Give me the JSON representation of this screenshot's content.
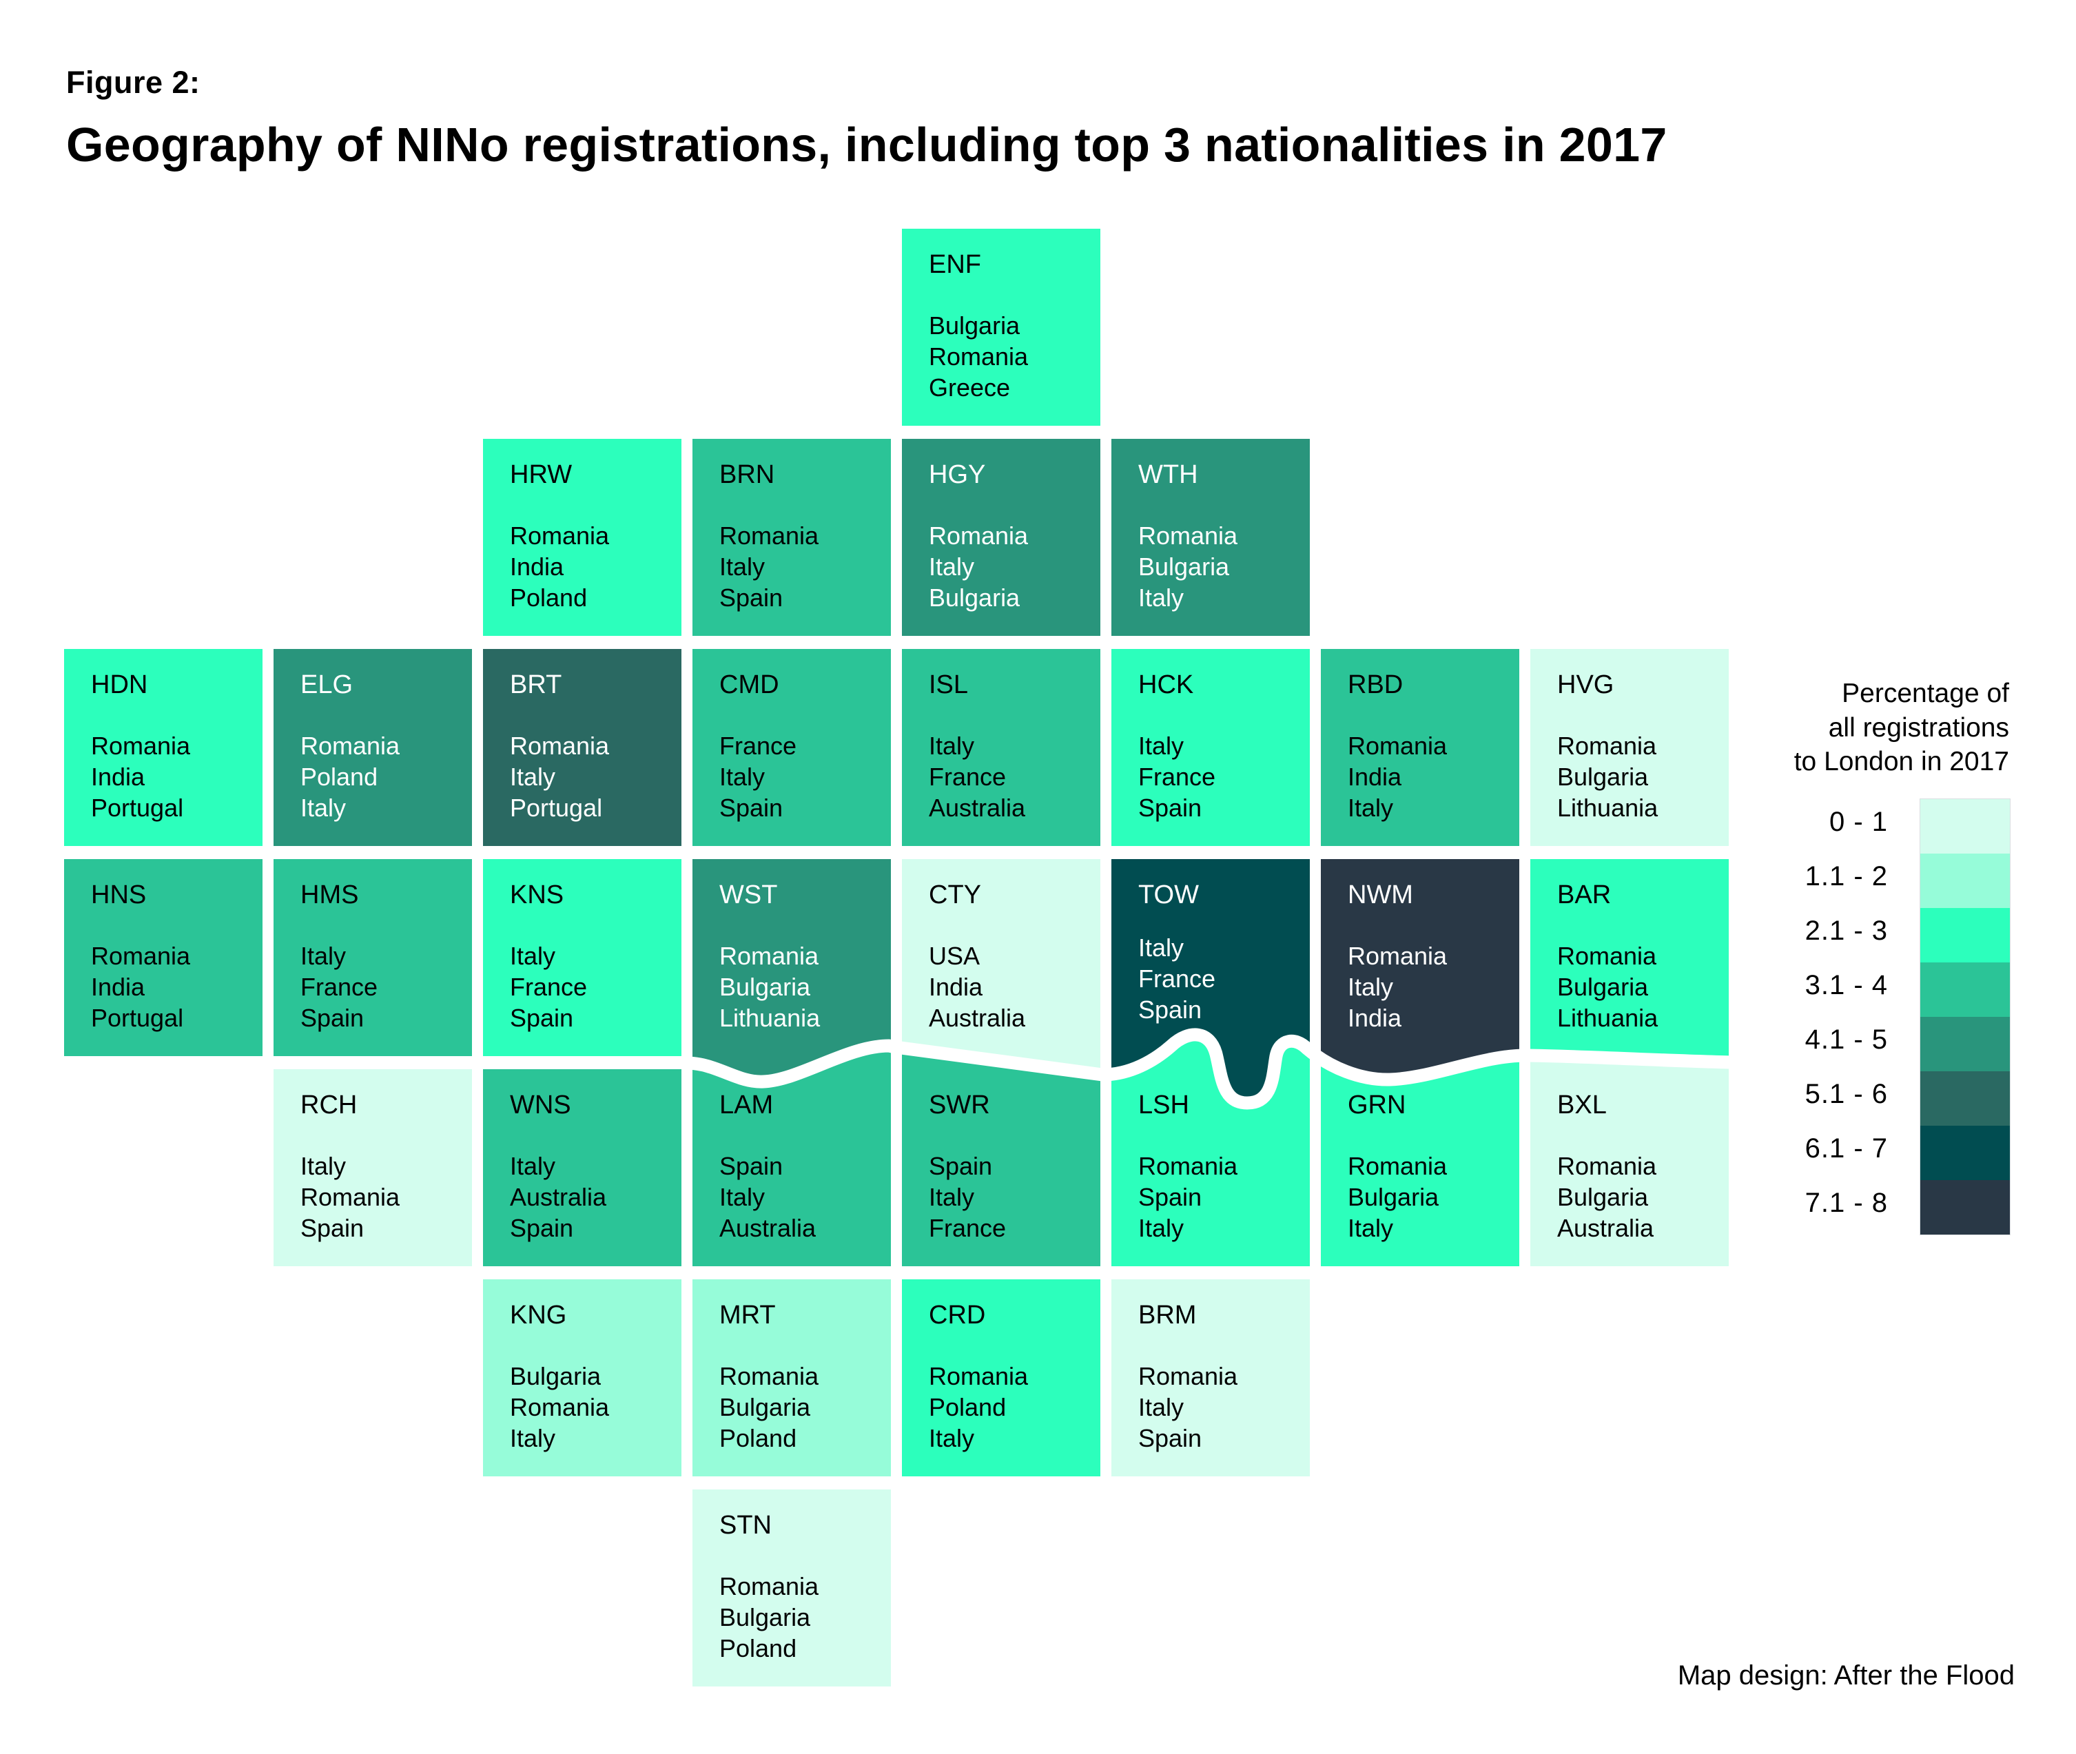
{
  "figure_label": "Figure 2:",
  "title": "Geography of NINo registrations, including top 3 nationalities in 2017",
  "legend": {
    "title_lines": [
      "Percentage of",
      "all registrations",
      "to London in 2017"
    ],
    "bands": [
      {
        "label": "0 - 1",
        "color": "#d3fdee"
      },
      {
        "label": "1.1 - 2",
        "color": "#96fcd9"
      },
      {
        "label": "2.1 - 3",
        "color": "#2cffbc"
      },
      {
        "label": "3.1 - 4",
        "color": "#2bc497"
      },
      {
        "label": "4.1 - 5",
        "color": "#29957c"
      },
      {
        "label": "5.1 - 6",
        "color": "#2a6962"
      },
      {
        "label": "6.1 - 7",
        "color": "#014d51"
      },
      {
        "label": "7.1 - 8",
        "color": "#293846"
      }
    ]
  },
  "map_data": {
    "type": "tile-map",
    "value_unit": "percentage of all registrations to London in 2017",
    "tiles": [
      {
        "code": "ENF",
        "band": "2.1 - 3",
        "countries": [
          "Bulgaria",
          "Romania",
          "Greece"
        ]
      },
      {
        "code": "HRW",
        "band": "2.1 - 3",
        "countries": [
          "Romania",
          "India",
          "Poland"
        ]
      },
      {
        "code": "BRN",
        "band": "3.1 - 4",
        "countries": [
          "Romania",
          "Italy",
          "Spain"
        ]
      },
      {
        "code": "HGY",
        "band": "4.1 - 5",
        "countries": [
          "Romania",
          "Italy",
          "Bulgaria"
        ]
      },
      {
        "code": "WTH",
        "band": "4.1 - 5",
        "countries": [
          "Romania",
          "Bulgaria",
          "Italy"
        ]
      },
      {
        "code": "HDN",
        "band": "2.1 - 3",
        "countries": [
          "Romania",
          "India",
          "Portugal"
        ]
      },
      {
        "code": "ELG",
        "band": "4.1 - 5",
        "countries": [
          "Romania",
          "Poland",
          "Italy"
        ]
      },
      {
        "code": "BRT",
        "band": "5.1 - 6",
        "countries": [
          "Romania",
          "Italy",
          "Portugal"
        ]
      },
      {
        "code": "CMD",
        "band": "3.1 - 4",
        "countries": [
          "France",
          "Italy",
          "Spain"
        ]
      },
      {
        "code": "ISL",
        "band": "3.1 - 4",
        "countries": [
          "Italy",
          "France",
          "Australia"
        ]
      },
      {
        "code": "HCK",
        "band": "2.1 - 3",
        "countries": [
          "Italy",
          "France",
          "Spain"
        ]
      },
      {
        "code": "RBD",
        "band": "3.1 - 4",
        "countries": [
          "Romania",
          "India",
          "Italy"
        ]
      },
      {
        "code": "HVG",
        "band": "0 - 1",
        "countries": [
          "Romania",
          "Bulgaria",
          "Lithuania"
        ]
      },
      {
        "code": "HNS",
        "band": "3.1 - 4",
        "countries": [
          "Romania",
          "India",
          "Portugal"
        ]
      },
      {
        "code": "HMS",
        "band": "3.1 - 4",
        "countries": [
          "Italy",
          "France",
          "Spain"
        ]
      },
      {
        "code": "KNS",
        "band": "2.1 - 3",
        "countries": [
          "Italy",
          "France",
          "Spain"
        ]
      },
      {
        "code": "WST",
        "band": "4.1 - 5",
        "countries": [
          "Romania",
          "Bulgaria",
          "Lithuania"
        ]
      },
      {
        "code": "CTY",
        "band": "0 - 1",
        "countries": [
          "USA",
          "India",
          "Australia"
        ]
      },
      {
        "code": "TOW",
        "band": "6.1 - 7",
        "countries": [
          "Italy",
          "France",
          "Spain"
        ]
      },
      {
        "code": "NWM",
        "band": "7.1 - 8",
        "countries": [
          "Romania",
          "Italy",
          "India"
        ]
      },
      {
        "code": "BAR",
        "band": "2.1 - 3",
        "countries": [
          "Romania",
          "Bulgaria",
          "Lithuania"
        ]
      },
      {
        "code": "RCH",
        "band": "0 - 1",
        "countries": [
          "Italy",
          "Romania",
          "Spain"
        ]
      },
      {
        "code": "WNS",
        "band": "3.1 - 4",
        "countries": [
          "Italy",
          "Australia",
          "Spain"
        ]
      },
      {
        "code": "LAM",
        "band": "3.1 - 4",
        "countries": [
          "Spain",
          "Italy",
          "Australia"
        ]
      },
      {
        "code": "SWR",
        "band": "3.1 - 4",
        "countries": [
          "Spain",
          "Italy",
          "France"
        ]
      },
      {
        "code": "LSH",
        "band": "2.1 - 3",
        "countries": [
          "Romania",
          "Spain",
          "Italy"
        ]
      },
      {
        "code": "GRN",
        "band": "2.1 - 3",
        "countries": [
          "Romania",
          "Bulgaria",
          "Italy"
        ]
      },
      {
        "code": "BXL",
        "band": "0 - 1",
        "countries": [
          "Romania",
          "Bulgaria",
          "Australia"
        ]
      },
      {
        "code": "KNG",
        "band": "1.1 - 2",
        "countries": [
          "Bulgaria",
          "Romania",
          "Italy"
        ]
      },
      {
        "code": "MRT",
        "band": "1.1 - 2",
        "countries": [
          "Romania",
          "Bulgaria",
          "Poland"
        ]
      },
      {
        "code": "CRD",
        "band": "2.1 - 3",
        "countries": [
          "Romania",
          "Poland",
          "Italy"
        ]
      },
      {
        "code": "BRM",
        "band": "0 - 1",
        "countries": [
          "Romania",
          "Italy",
          "Spain"
        ]
      },
      {
        "code": "STN",
        "band": "0 - 1",
        "countries": [
          "Romania",
          "Bulgaria",
          "Poland"
        ]
      }
    ]
  },
  "footnote": "Map design: After the Flood"
}
